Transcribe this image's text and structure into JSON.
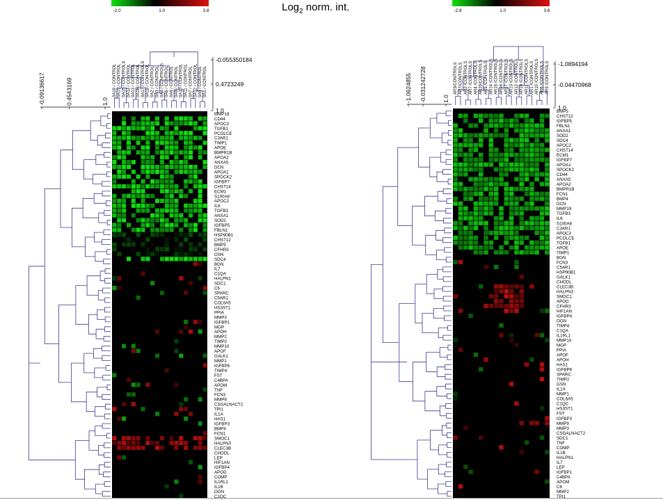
{
  "title": {
    "main": "Log",
    "sub": "2",
    "rest": " norm. int."
  },
  "colors": {
    "min": "#10e010",
    "mid": "#000000",
    "max": "#e01010",
    "tree": "#3a3a8a"
  },
  "chart_data": [
    {
      "type": "heatmap",
      "colorbar": {
        "ticks": [
          "-2.0",
          "1.0",
          "3.8"
        ],
        "min": -2.0,
        "mid": 1.0,
        "max": 3.8
      },
      "scale_labels": {
        "col_tree": [
          "-0.055350184",
          "0.4723249",
          "1.0"
        ],
        "row_tree": [
          "-0.09136617",
          "0.4543169",
          "1.0"
        ]
      },
      "columns": [
        "0A19 / CONTROL",
        "0A15 / CONTROL",
        "0A15 / CONTROLS",
        "0A14 / CONTROL",
        "0A13 / CONTROL",
        "0A16 / CONTROL",
        "0A17 / CONTROLS",
        "0A18 / CONTROL",
        "0A2 / CONTROL",
        "0A3 / CONTROL",
        "0A4 / CONTROLS",
        "0A6 / CONTROL",
        "0A8 / CONTROL",
        "0A9 / CONTROL",
        "0A10 / CONTROL",
        "0A11 / CONTROL",
        "0A7 / CONTROL",
        "0A12 / CONTROL",
        "0A5 / CONTROL",
        "0A1 / CONTROL"
      ],
      "rows": [
        "MMP19",
        "CD44",
        "APOC3",
        "TGFB1",
        "PCOLCE",
        "C3AR1",
        "TIMP1",
        "APOE",
        "BMPR1B",
        "APOA2",
        "ANXA5",
        "DCN",
        "APOA1",
        "SPOCK2",
        "IGFBP7",
        "CHST14",
        "ECM1",
        "S100A8",
        "APOC2",
        "IL6",
        "TGFB3",
        "ANXA1",
        "SOD2",
        "IGFBP5",
        "FBLN1",
        "HSP90B1",
        "CHST12",
        "BMP5",
        "CFHR3",
        "GSN",
        "SDC4",
        "BGN",
        "IL7",
        "C1QA",
        "HALPN1",
        "SDC1",
        "C6",
        "SPARC",
        "C5AR1",
        "COL6A5",
        "HS3ST1",
        "PPIA",
        "MMP3",
        "IGFBP1",
        "MGP",
        "APOH",
        "MMP2",
        "TIMP2",
        "MMP10",
        "APOF",
        "GALK1",
        "MMP1",
        "IGFBP6",
        "TIMP4",
        "FST",
        "C4BPA",
        "APOM",
        "TNF",
        "FCN3",
        "MMP9",
        "CSGALNACT2",
        "TPI1",
        "IL1A",
        "HAS1",
        "IGFBP3",
        "BMP4",
        "FCN1",
        "SMOC1",
        "HALPN3",
        "CLEC3B",
        "CHODL",
        "LEP",
        "HIF1AN",
        "IGFBP4",
        "APOD",
        "COMP",
        "IL1RL1",
        "IL1B",
        "OGN",
        "C1QC"
      ],
      "blocks": [
        {
          "r": [
            1,
            25
          ],
          "c": [
            0,
            20
          ],
          "value": -1.4,
          "note": "upper block mostly downregulated"
        },
        {
          "r": [
            25,
            30
          ],
          "c": [
            0,
            20
          ],
          "value": 0.6
        },
        {
          "r": [
            30,
            31
          ],
          "c": [
            0,
            20
          ],
          "value": -1.9
        },
        {
          "r": [
            67,
            70
          ],
          "c": [
            0,
            20
          ],
          "value": 2.6
        }
      ]
    },
    {
      "type": "heatmap",
      "colorbar": {
        "ticks": [
          "-2.8",
          "1.0",
          "3.6"
        ],
        "min": -2.8,
        "mid": 1.0,
        "max": 3.6
      },
      "scale_labels": {
        "col_tree": [
          "-1.0894194",
          "-0.04470968",
          "1.0"
        ],
        "row_tree": [
          "-1.0624855",
          "-0.031242728",
          "1.0"
        ]
      },
      "columns": [
        "AR3/CONTROLS",
        "AR7/CONTROLS",
        "AR2 /CONTROLS",
        "AR7 /CONTROLS",
        "AR4 /CONTROLS",
        "AR20/CONTROLS",
        "AR5 /CONTROLS",
        "AR14 /CONTROLS",
        "AR15 /CONTROLS",
        "AR16 /CONTROLS",
        "AR17 /CONTROLS",
        "AR13 /CONTROLS",
        "AR12 /CONTROLS",
        "AR18 /CONTROLS",
        "AR11 /CONTROLS",
        "AR1 /CONTROLS",
        "AR10 /CONTROLS",
        "AR6 /CONTROLS",
        "AR9 /CONTROLS"
      ],
      "rows": [
        "BMP5",
        "CHST12",
        "IGFBP5",
        "FBLN1",
        "ANXA1",
        "SOD2",
        "SDC4",
        "APOC2",
        "CHST14",
        "ECM1",
        "IGFBP7",
        "APOA1",
        "SPOCK2",
        "CD44",
        "ANXA5",
        "APOA2",
        "BMPR1B",
        "FCN1",
        "BMP4",
        "DCN",
        "MMP19",
        "TGFB3",
        "IL6",
        "S100A8",
        "C3AR1",
        "APOC3",
        "PCOLCE",
        "TGFB1",
        "APOE",
        "TIMP1",
        "BGN",
        "FCN3",
        "C5AR1",
        "HSP90B1",
        "GALK1",
        "CHODL",
        "CLEC3B",
        "HALPN3",
        "SMOC1",
        "APOD",
        "CFHR3",
        "HIF1AN",
        "IGFBP4",
        "OGN",
        "TIMP4",
        "C1QA",
        "IL1RL1",
        "MMP10",
        "MGP",
        "PPIA",
        "APOF",
        "APOH",
        "HAS1",
        "IGFBP6",
        "SPARC",
        "TIMP2",
        "GSN",
        "IL1A",
        "MMP1",
        "COL6A5",
        "C1QC",
        "HS3ST1",
        "FST",
        "IGFBP3",
        "MMP9",
        "MMP3",
        "CSGALNACT2",
        "SDC1",
        "TNF",
        "COMP",
        "IL1B",
        "HALPN1",
        "IL7",
        "LEP",
        "IGFBP1",
        "C4BPA",
        "APOM",
        "C6",
        "MMP2",
        "TPI1"
      ],
      "blocks": [
        {
          "r": [
            1,
            30
          ],
          "c": [
            0,
            19
          ],
          "value": -1.6,
          "note": "upper block mostly downregulated"
        },
        {
          "r": [
            36,
            42
          ],
          "c": [
            7,
            14
          ],
          "value": 2.5
        }
      ]
    }
  ]
}
